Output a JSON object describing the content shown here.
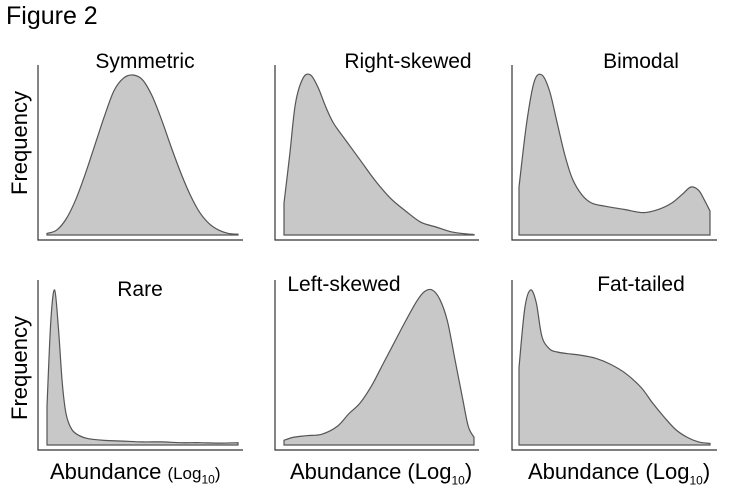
{
  "figure_title": "Figure 2",
  "ylabels": [
    "Frequency",
    "Frequency"
  ],
  "xlabels": [
    {
      "main": "Abundance ",
      "paren_open": "(Log",
      "sub": "10",
      "paren_close": ")"
    },
    {
      "main": "Abundance (Log",
      "paren_open": "",
      "sub": "10",
      "paren_close": ")"
    },
    {
      "main": "Abundance (Log",
      "paren_open": "",
      "sub": "10",
      "paren_close": ")"
    }
  ],
  "colors": {
    "fill": "#c8c8c8",
    "stroke": "#555555",
    "axis": "#333333"
  },
  "chart_data": [
    {
      "type": "area",
      "title": "Symmetric",
      "x": [
        0,
        0.05,
        0.1,
        0.15,
        0.2,
        0.25,
        0.3,
        0.35,
        0.4,
        0.45,
        0.5,
        0.55,
        0.6,
        0.65,
        0.7,
        0.75,
        0.8,
        0.85,
        0.9,
        0.95,
        1
      ],
      "y": [
        0.01,
        0.03,
        0.1,
        0.22,
        0.38,
        0.56,
        0.74,
        0.9,
        0.98,
        1.0,
        0.97,
        0.87,
        0.72,
        0.55,
        0.39,
        0.25,
        0.14,
        0.07,
        0.03,
        0.01,
        0.005
      ]
    },
    {
      "type": "area",
      "title": "Right-skewed",
      "x": [
        0,
        0.03,
        0.06,
        0.1,
        0.14,
        0.18,
        0.22,
        0.26,
        0.32,
        0.4,
        0.48,
        0.56,
        0.64,
        0.72,
        0.8,
        0.88,
        0.95,
        1
      ],
      "y": [
        0.2,
        0.5,
        0.82,
        0.98,
        1.0,
        0.92,
        0.8,
        0.7,
        0.6,
        0.47,
        0.34,
        0.23,
        0.15,
        0.08,
        0.05,
        0.02,
        0.008,
        0.003
      ]
    },
    {
      "type": "area",
      "title": "Bimodal",
      "x": [
        0,
        0.04,
        0.08,
        0.12,
        0.16,
        0.2,
        0.24,
        0.28,
        0.33,
        0.38,
        0.45,
        0.55,
        0.65,
        0.73,
        0.8,
        0.86,
        0.9,
        0.94,
        0.97,
        1
      ],
      "y": [
        0.3,
        0.7,
        0.96,
        1.0,
        0.9,
        0.7,
        0.5,
        0.35,
        0.25,
        0.2,
        0.18,
        0.16,
        0.14,
        0.16,
        0.2,
        0.26,
        0.3,
        0.28,
        0.22,
        0.15
      ]
    },
    {
      "type": "area",
      "title": "Rare",
      "x": [
        0,
        0.02,
        0.04,
        0.06,
        0.08,
        0.1,
        0.13,
        0.17,
        0.22,
        0.3,
        0.4,
        0.5,
        0.6,
        0.7,
        0.8,
        0.9,
        1
      ],
      "y": [
        0.25,
        0.8,
        1.0,
        0.75,
        0.4,
        0.2,
        0.1,
        0.06,
        0.04,
        0.03,
        0.025,
        0.02,
        0.02,
        0.015,
        0.015,
        0.012,
        0.015
      ]
    },
    {
      "type": "area",
      "title": "Left-skewed",
      "x": [
        0,
        0.05,
        0.12,
        0.2,
        0.28,
        0.34,
        0.4,
        0.46,
        0.52,
        0.58,
        0.64,
        0.7,
        0.74,
        0.78,
        0.82,
        0.86,
        0.9,
        0.94,
        0.97,
        1
      ],
      "y": [
        0.03,
        0.05,
        0.06,
        0.07,
        0.12,
        0.2,
        0.27,
        0.38,
        0.52,
        0.66,
        0.8,
        0.93,
        0.99,
        1.0,
        0.94,
        0.8,
        0.55,
        0.3,
        0.12,
        0.05
      ]
    },
    {
      "type": "area",
      "title": "Fat-tailed",
      "x": [
        0,
        0.03,
        0.06,
        0.09,
        0.12,
        0.16,
        0.2,
        0.25,
        0.32,
        0.4,
        0.48,
        0.56,
        0.64,
        0.7,
        0.76,
        0.82,
        0.88,
        0.94,
        1
      ],
      "y": [
        0.5,
        0.88,
        1.0,
        0.92,
        0.7,
        0.62,
        0.6,
        0.59,
        0.58,
        0.56,
        0.52,
        0.46,
        0.37,
        0.27,
        0.18,
        0.1,
        0.05,
        0.02,
        0.01
      ]
    }
  ]
}
